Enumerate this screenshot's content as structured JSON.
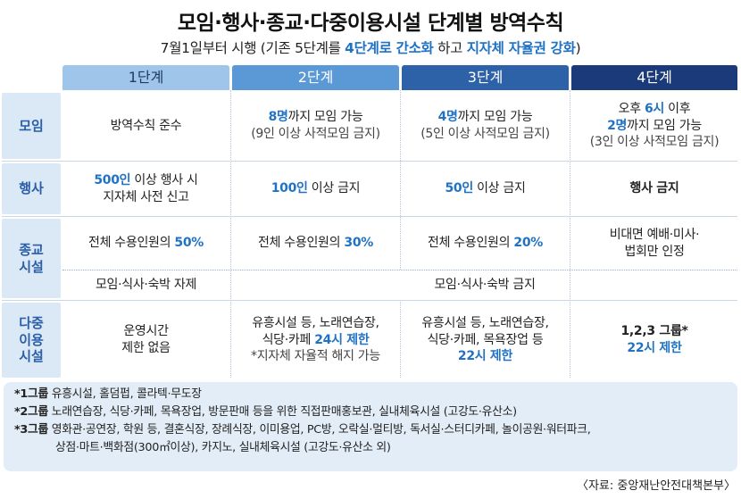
{
  "title": "모임·행사·종교·다중이용시설 단계별 방역수칙",
  "subtitle": {
    "pre": "7월1일부터 시행 (기존 5단계를 ",
    "hl1": "4단계로 간소화",
    "mid": " 하고 ",
    "hl2": "지자체 자율권 강화",
    "post": ")"
  },
  "stages": [
    "1단계",
    "2단계",
    "3단계",
    "4단계"
  ],
  "rows": {
    "gathering": {
      "label": "모임",
      "s1": "방역수칙 준수",
      "s2": {
        "num": "8명",
        "rest": "까지 모임 가능",
        "note": "(9인 이상 사적모임 금지)"
      },
      "s3": {
        "num": "4명",
        "rest": "까지 모임 가능",
        "note": "(5인 이상 사적모임 금지)"
      },
      "s4": {
        "line1_pre": "오후 ",
        "line1_num": "6시",
        "line1_post": " 이후",
        "num": "2명",
        "rest": "까지 모임 가능",
        "note": "(3인 이상 사적모임 금지)"
      }
    },
    "event": {
      "label": "행사",
      "s1": {
        "num": "500인",
        "rest": " 이상 행사 시",
        "line2": "지자체 사전 신고"
      },
      "s2": {
        "num": "100인",
        "rest": " 이상 금지"
      },
      "s3": {
        "num": "50인",
        "rest": " 이상  금지"
      },
      "s4": "행사 금지"
    },
    "religion": {
      "label_1": "종교",
      "label_2": "시설",
      "s1": {
        "pre": "전체 수용인원의 ",
        "num": "50%"
      },
      "s2": {
        "pre": "전체 수용인원의 ",
        "num": "30%"
      },
      "s3": {
        "pre": "전체 수용인원의 ",
        "num": "20%"
      },
      "s4_1": "비대면 예배·미사·",
      "s4_2": "법회만 인정",
      "sub_s1": "모임·식사·숙박 자제",
      "sub_rest": "모임·식사·숙박 금지"
    },
    "facility": {
      "label_1": "다중",
      "label_2": "이용",
      "label_3": "시설",
      "s1_1": "운영시간",
      "s1_2": "제한 없음",
      "s2_1": "유흥시설 등, 노래연습장,",
      "s2_2pre": "식당·카페 ",
      "s2_2hl": "24시 제한",
      "s2_3": "*지자체 자율적 해지 가능",
      "s3_1": "유흥시설 등, 노래연습장,",
      "s3_2": "식당·카페, 목욕장업 등",
      "s3_3": "22시 제한",
      "s4_1": "1,2,3 그룹*",
      "s4_2": "22시 제한"
    }
  },
  "footnotes": [
    {
      "tag": "*1그룹",
      "text": " 유흥시설, 홀덤펍, 콜라텍·무도장"
    },
    {
      "tag": "*2그룹",
      "text": " 노래연습장, 식당·카페, 목욕장업, 방문판매 등을 위한 직접판매홍보관, 실내체육시설 (고강도·유산소)"
    },
    {
      "tag": "*3그룹",
      "text": " 영화관·공연장, 학원 등, 결혼식장, 장례식장, 이미용업, PC방, 오락실·멀티방, 독서실·스터디카페, 놀이공원·워터파크,"
    },
    {
      "tag": "",
      "text": "상점·마트·백화점(300㎡이상), 카지노, 실내체육시설 (고강도·유산소 외)"
    }
  ],
  "source": "〈자료: 중앙재난안전대책본부〉",
  "colors": {
    "accent": "#1f72c4",
    "label_bg": "#dbe8f5",
    "stage1": "#9fc6ea",
    "stage2": "#5a99d6",
    "stage3": "#2d62a8",
    "stage4": "#1a3a7a",
    "footnote_bg": "#e3edf7"
  }
}
